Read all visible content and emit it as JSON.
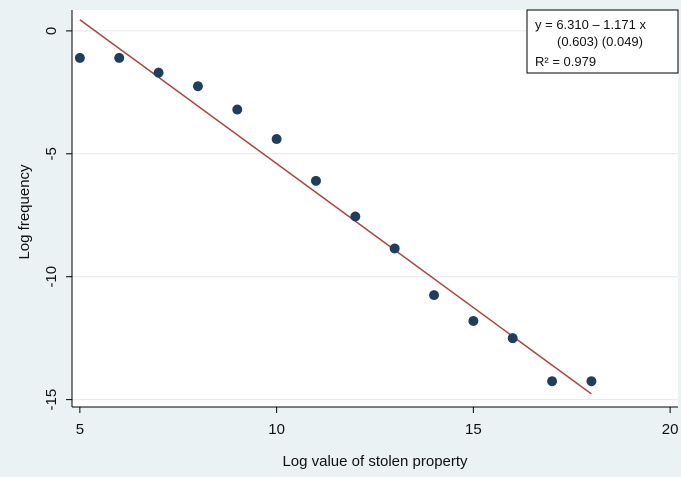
{
  "chart_data": {
    "type": "scatter",
    "xlabel": "Log value of stolen property",
    "ylabel": "Log frequency",
    "xlim": [
      4.8,
      20.2
    ],
    "ylim": [
      -15.3,
      0.85
    ],
    "xticks": [
      5,
      10,
      15,
      20
    ],
    "yticks": [
      0,
      -5,
      -10,
      -15
    ],
    "xtick_labels": [
      "5",
      "10",
      "15",
      "20"
    ],
    "ytick_labels": [
      "0",
      "-5",
      "-10",
      "-15"
    ],
    "grid": "horizontal",
    "series": [
      {
        "marker_color": "#1f3e5c",
        "x": [
          5,
          6,
          7,
          8,
          9,
          10,
          11,
          12,
          13,
          14,
          15,
          16,
          17,
          18
        ],
        "y": [
          -1.1,
          -1.1,
          -1.7,
          -2.25,
          -3.2,
          -4.4,
          -6.1,
          -7.55,
          -8.85,
          -10.75,
          -11.8,
          -12.5,
          -14.25,
          -14.25
        ]
      }
    ],
    "fit_line": {
      "intercept": 6.31,
      "slope": -1.171,
      "x_range": [
        5,
        18
      ],
      "color": "#a8463d"
    },
    "annotation": {
      "line1": "y  = 6.310 –  1.171 x",
      "line2": "(0.603)   (0.049)",
      "line3": "R² = 0.979"
    },
    "colors": {
      "outer_background": "#eaf2f3",
      "plot_background": "#ffffff",
      "grid": "#e2e8ea",
      "axis": "#000000"
    }
  }
}
